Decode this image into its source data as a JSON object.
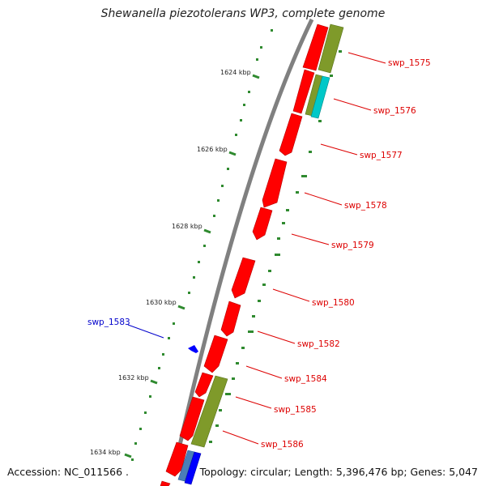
{
  "title": "Shewanella piezotolerans WP3, complete genome",
  "accession": "Accession: NC_011566 .",
  "summary": "Topology: circular; Length: 5,396,476 bp; Genes: 5,047",
  "colors": {
    "label_red": "#dd0000",
    "label_blue": "#0000cc",
    "cds": "#ff0000",
    "olive": "#7f9a2a",
    "cyan": "#00c8c8",
    "steelblue": "#4a7fb8",
    "blue": "#0000ff",
    "ticks": "#2f8a2f",
    "backbone": "#808080"
  },
  "scale_ticks": [
    "1624 kbp",
    "1626 kbp",
    "1628 kbp",
    "1630 kbp",
    "1632 kbp",
    "1634 kbp"
  ],
  "gene_labels": [
    {
      "name": "swp_1575",
      "color": "red"
    },
    {
      "name": "swp_1576",
      "color": "red"
    },
    {
      "name": "swp_1577",
      "color": "red"
    },
    {
      "name": "swp_1578",
      "color": "red"
    },
    {
      "name": "swp_1579",
      "color": "red"
    },
    {
      "name": "swp_1580",
      "color": "red"
    },
    {
      "name": "swp_1582",
      "color": "red"
    },
    {
      "name": "swp_1584",
      "color": "red"
    },
    {
      "name": "swp_1585",
      "color": "red"
    },
    {
      "name": "swp_1586",
      "color": "red"
    },
    {
      "name": "swp_1583",
      "color": "blue"
    }
  ]
}
